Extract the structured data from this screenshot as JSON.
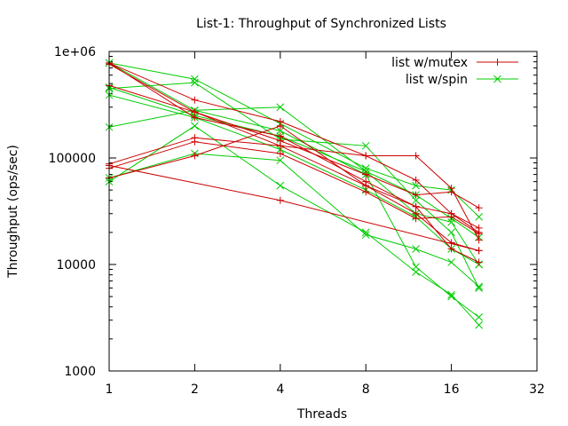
{
  "chart_data": {
    "type": "line",
    "title": "List-1: Throughput of Synchronized Lists",
    "xlabel": "Threads",
    "ylabel": "Throughput (ops/sec)",
    "xscale": "log2",
    "yscale": "log10",
    "xlim": [
      1,
      32
    ],
    "ylim": [
      1000,
      1000000
    ],
    "x_ticks": [
      {
        "value": 1,
        "label": "1"
      },
      {
        "value": 2,
        "label": "2"
      },
      {
        "value": 4,
        "label": "4"
      },
      {
        "value": 8,
        "label": "8"
      },
      {
        "value": 16,
        "label": "16"
      },
      {
        "value": 32,
        "label": "32"
      }
    ],
    "y_ticks": [
      {
        "value": 1000,
        "label": "1000"
      },
      {
        "value": 10000,
        "label": "10000"
      },
      {
        "value": 100000,
        "label": "100000"
      },
      {
        "value": 1000000,
        "label": "1e+06"
      }
    ],
    "legend_position": "top-right",
    "series": [
      {
        "name": "list w/mutex",
        "color": "#cc0000",
        "marker": "plus",
        "lines": [
          {
            "x": [
              1,
              2,
              4,
              8,
              12,
              16,
              20
            ],
            "y": [
              780000,
              240000,
              160000,
              60000,
              35000,
              30000,
              20000
            ]
          },
          {
            "x": [
              1,
              2,
              4,
              8,
              12,
              16,
              20
            ],
            "y": [
              780000,
              350000,
              220000,
              105000,
              62000,
              30000,
              22000
            ]
          },
          {
            "x": [
              1,
              2,
              4,
              8,
              12,
              16,
              20
            ],
            "y": [
              760000,
              270000,
              130000,
              55000,
              30000,
              16000,
              13500
            ]
          },
          {
            "x": [
              1,
              2,
              4,
              8,
              12,
              16,
              20
            ],
            "y": [
              480000,
              270000,
              145000,
              70000,
              45000,
              48000,
              34000
            ]
          },
          {
            "x": [
              1,
              2,
              4,
              8,
              12,
              16,
              20
            ],
            "y": [
              88000,
              155000,
              130000,
              105000,
              105000,
              52000,
              17000
            ]
          },
          {
            "x": [
              1,
              2,
              4,
              8,
              12,
              16,
              20
            ],
            "y": [
              80000,
              142000,
              110000,
              48000,
              27000,
              28000,
              19500
            ]
          },
          {
            "x": [
              1,
              2,
              4,
              8,
              12,
              16,
              20
            ],
            "y": [
              65000,
              105000,
              200000,
              55000,
              35000,
              14000,
              10500
            ]
          },
          {
            "x": [
              1,
              4,
              20
            ],
            "y": [
              85000,
              40000,
              13500
            ]
          }
        ]
      },
      {
        "name": "list w/spin",
        "color": "#00cc00",
        "marker": "cross",
        "lines": [
          {
            "x": [
              1,
              2,
              4,
              8,
              12,
              16,
              20
            ],
            "y": [
              780000,
              550000,
              210000,
              80000,
              55000,
              50000,
              28000
            ]
          },
          {
            "x": [
              1,
              2,
              4,
              8,
              12,
              16,
              20
            ],
            "y": [
              780000,
              280000,
              300000,
              75000,
              30000,
              25000,
              10000
            ]
          },
          {
            "x": [
              1,
              2,
              4,
              8,
              12,
              16,
              20
            ],
            "y": [
              450000,
              510000,
              150000,
              130000,
              40000,
              20000,
              6000
            ]
          },
          {
            "x": [
              1,
              2,
              4,
              8,
              12,
              16,
              20
            ],
            "y": [
              460000,
              250000,
              160000,
              75000,
              45000,
              27000,
              18000
            ]
          },
          {
            "x": [
              1,
              2,
              4,
              8,
              12,
              16,
              20
            ],
            "y": [
              390000,
              240000,
              120000,
              50000,
              28000,
              14000,
              10000
            ]
          },
          {
            "x": [
              1,
              2,
              4,
              8,
              12,
              16,
              20
            ],
            "y": [
              195000,
              280000,
              180000,
              70000,
              9500,
              5000,
              3200
            ]
          },
          {
            "x": [
              1,
              2,
              4,
              8,
              12,
              16,
              20
            ],
            "y": [
              65000,
              110000,
              95000,
              19000,
              14000,
              10500,
              6200
            ]
          },
          {
            "x": [
              1,
              2,
              4,
              8,
              12,
              16,
              20
            ],
            "y": [
              60000,
              200000,
              55000,
              20000,
              8500,
              5200,
              2700
            ]
          }
        ]
      }
    ]
  }
}
